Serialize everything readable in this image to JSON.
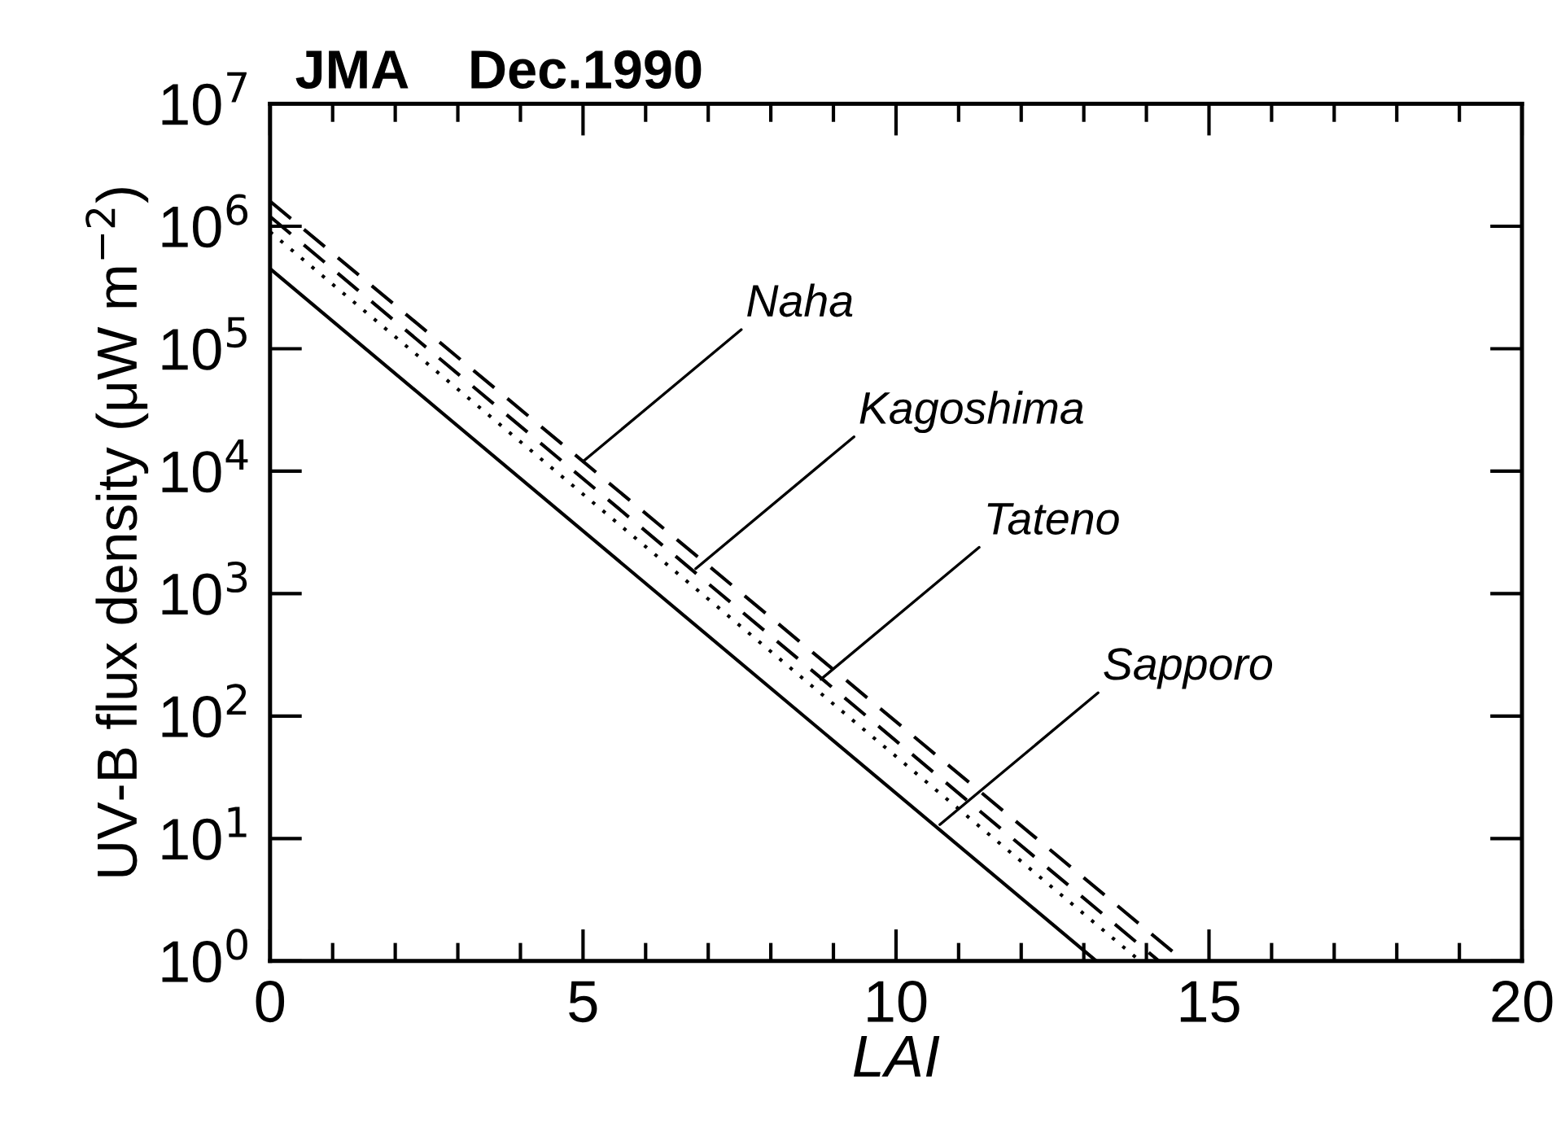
{
  "chart_data": {
    "type": "line",
    "title": "JMA    Dec.1990",
    "xlabel": "LAI",
    "ylabel": "UV-B flux density (μW m$^{−2}$)",
    "log": "y",
    "series": [
      {
        "x": [
          0,
          14.6
        ],
        "values": [
          1600000,
          1
        ],
        "color": "#000000",
        "line_style": "dashed"
      },
      {
        "x": [
          0,
          14.2
        ],
        "values": [
          1200000,
          1
        ],
        "color": "#000000",
        "line_style": "dashed"
      },
      {
        "x": [
          0,
          13.9
        ],
        "values": [
          900000,
          1
        ],
        "color": "#000000",
        "line_style": "dotted"
      },
      {
        "x": [
          0,
          13.2
        ],
        "values": [
          450000,
          1
        ],
        "color": "#000000",
        "line_style": "solid"
      }
    ],
    "annotations": [
      {
        "text": "Naha",
        "x": 5.0,
        "y": 12000
      },
      {
        "text": "Kagoshima",
        "x": 6.8,
        "y": 1600
      },
      {
        "text": "Tateno",
        "x": 8.8,
        "y": 200
      },
      {
        "text": "Sapporo",
        "x": 10.7,
        "y": 13
      }
    ],
    "xlim": [
      0,
      20
    ],
    "xticks": [
      0,
      {
        "value": 1,
        "label": null
      },
      {
        "value": 2,
        "label": null
      },
      {
        "value": 3,
        "label": null
      },
      {
        "value": 4,
        "label": null
      },
      5,
      {
        "value": 6,
        "label": null
      },
      {
        "value": 7,
        "label": null
      },
      {
        "value": 8,
        "label": null
      },
      {
        "value": 9,
        "label": null
      },
      10,
      {
        "value": 11,
        "label": null
      },
      {
        "value": 12,
        "label": null
      },
      {
        "value": 13,
        "label": null
      },
      {
        "value": 14,
        "label": null
      },
      15,
      {
        "value": 16,
        "label": null
      },
      {
        "value": 17,
        "label": null
      },
      {
        "value": 18,
        "label": null
      },
      {
        "value": 19,
        "label": null
      },
      20
    ],
    "ylim": [
      1,
      10000000
    ],
    "yticks": [
      {
        "value": 1,
        "label": "10$^{0}$"
      },
      {
        "value": 10,
        "label": "10$^{1}$"
      },
      {
        "value": 100,
        "label": "10$^{2}$"
      },
      {
        "value": 1000,
        "label": "10$^{3}$"
      },
      {
        "value": 10000,
        "label": "10$^{4}$"
      },
      {
        "value": 100000,
        "label": "10$^{5}$"
      },
      {
        "value": 1000000,
        "label": "10$^{6}$"
      },
      {
        "value": 10000000,
        "label": "10$^{7}$"
      }
    ],
    "grid": false,
    "legend": false,
    "marker": "none"
  }
}
